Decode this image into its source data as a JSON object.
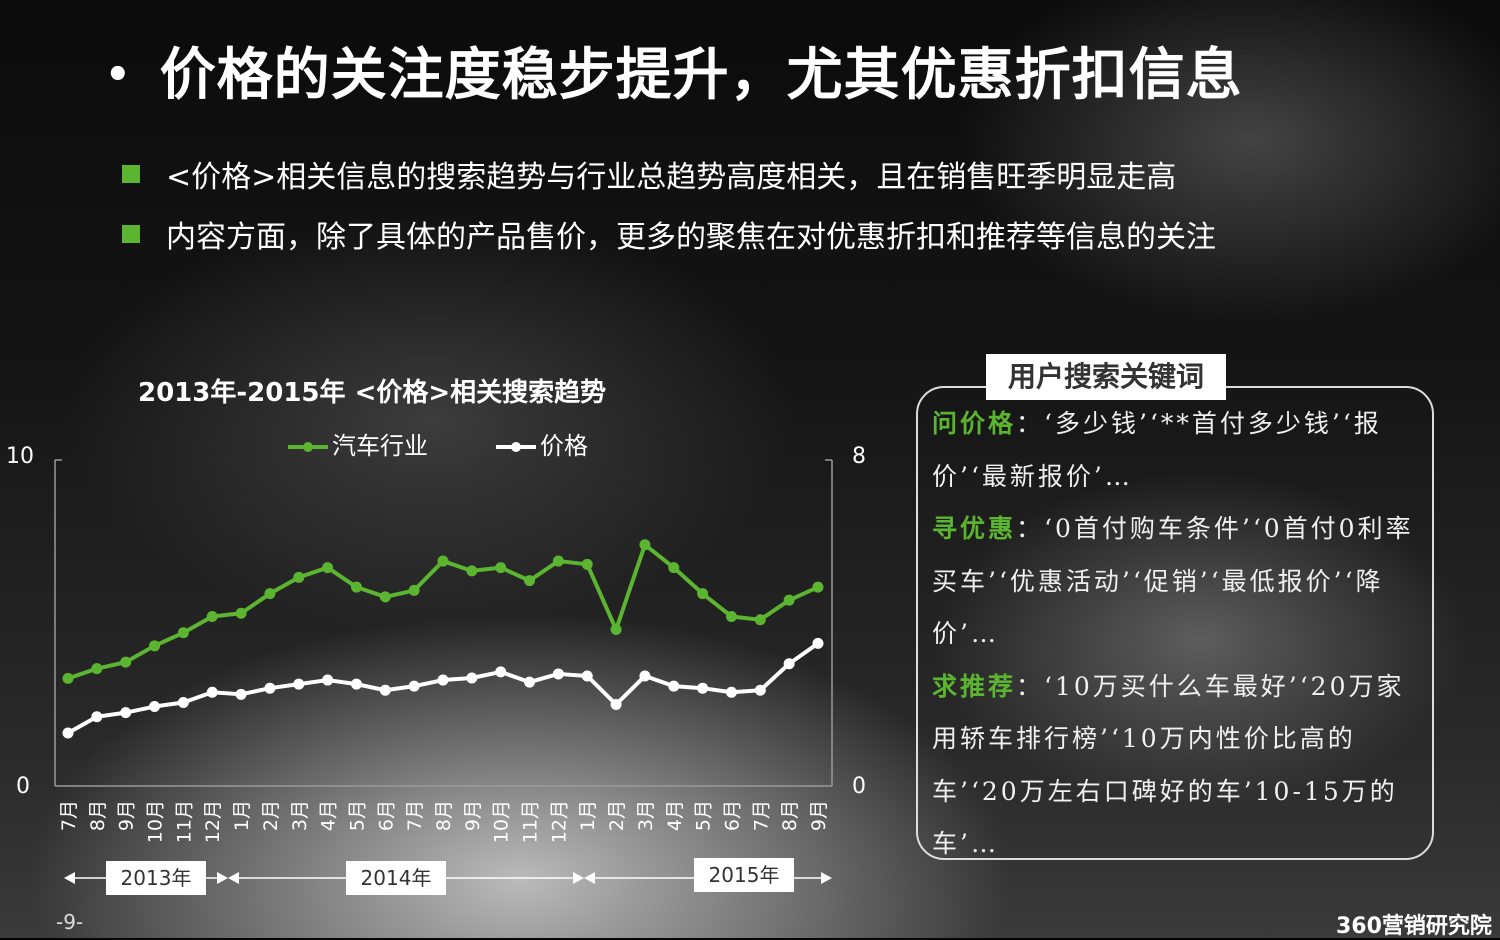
{
  "slide": {
    "title": "价格的关注度稳步提升，尤其优惠折扣信息",
    "bullets": [
      "<价格>相关信息的搜索趋势与行业总趋势高度相关，且在销售旺季明显走高",
      "内容方面，除了具体的产品售价，更多的聚焦在对优惠折扣和推荐等信息的关注"
    ],
    "page_number": "-9-",
    "brand": "360营销研究院"
  },
  "colors": {
    "green": "#5cb531",
    "white": "#ffffff",
    "background": "#050505"
  },
  "chart_data": {
    "type": "line",
    "title": "2013年-2015年 <价格>相关搜索趋势",
    "categories": [
      "7月",
      "8月",
      "9月",
      "10月",
      "11月",
      "12月",
      "1月",
      "2月",
      "3月",
      "4月",
      "5月",
      "6月",
      "7月",
      "8月",
      "9月",
      "10月",
      "11月",
      "12月",
      "1月",
      "2月",
      "3月",
      "4月",
      "5月",
      "6月",
      "7月",
      "8月",
      "9月"
    ],
    "series": [
      {
        "name": "汽车行业",
        "axis": "left",
        "color": "#5cb531",
        "values": [
          3.3,
          3.6,
          3.8,
          4.3,
          4.7,
          5.2,
          5.3,
          5.9,
          6.4,
          6.7,
          6.1,
          5.8,
          6.0,
          6.9,
          6.6,
          6.7,
          6.3,
          6.9,
          6.8,
          4.8,
          7.4,
          6.7,
          5.9,
          5.2,
          5.1,
          5.7,
          6.1
        ]
      },
      {
        "name": "价格",
        "axis": "right",
        "color": "#ffffff",
        "values": [
          1.3,
          1.7,
          1.8,
          1.95,
          2.05,
          2.3,
          2.25,
          2.4,
          2.5,
          2.6,
          2.5,
          2.35,
          2.45,
          2.6,
          2.65,
          2.8,
          2.55,
          2.75,
          2.7,
          2.0,
          2.7,
          2.45,
          2.4,
          2.3,
          2.35,
          3.0,
          3.5
        ]
      }
    ],
    "y_left": {
      "min": 0,
      "max": 10,
      "ticks": [
        "0",
        "10"
      ]
    },
    "y_right": {
      "min": 0,
      "max": 8,
      "ticks": [
        "0",
        "8"
      ]
    },
    "year_groups": [
      {
        "label": "2013年",
        "start": 0,
        "end": 5
      },
      {
        "label": "2014年",
        "start": 6,
        "end": 17
      },
      {
        "label": "2015年",
        "start": 18,
        "end": 26
      }
    ]
  },
  "keywords": {
    "title": "用户搜索关键词",
    "items": [
      {
        "label": "问价格",
        "text": "：‘多少钱’‘**首付多少钱’‘报价’‘最新报价’…"
      },
      {
        "label": "寻优惠",
        "text": "：‘0首付购车条件’‘0首付0利率买车’‘优惠活动’‘促销’‘最低报价’‘降价’…"
      },
      {
        "label": "求推荐",
        "text": "：‘10万买什么车最好’‘20万家用轿车排行榜’‘10万内性价比高的车’‘20万左右口碑好的车’10-15万的车’…"
      }
    ]
  }
}
